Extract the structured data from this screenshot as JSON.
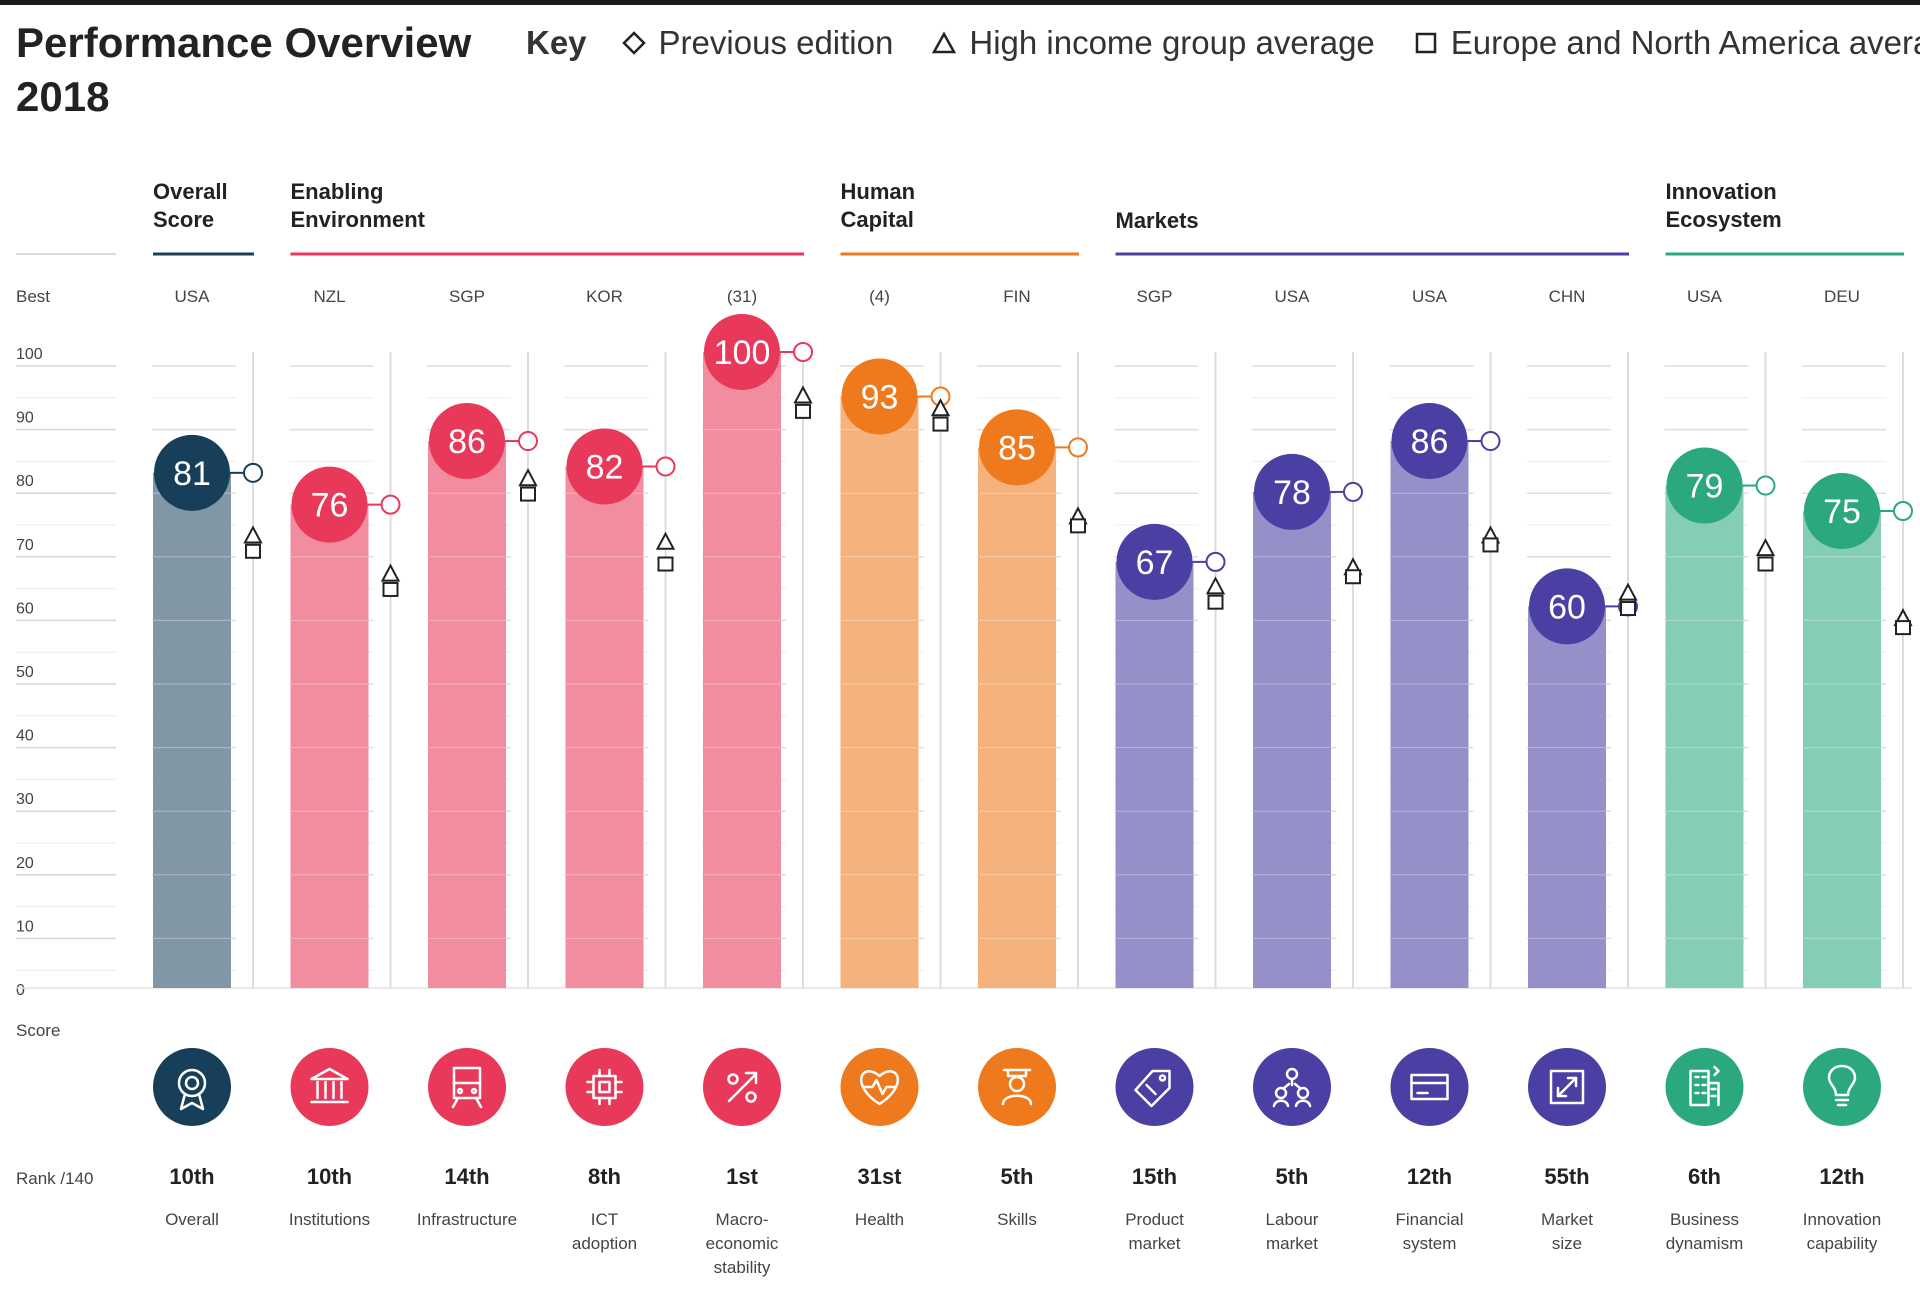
{
  "title_line1": "Performance Overview",
  "title_line2": "2018",
  "key": {
    "label": "Key",
    "items": [
      {
        "symbol": "diamond",
        "label": "Previous edition"
      },
      {
        "symbol": "triangle",
        "label": "High income group average"
      },
      {
        "symbol": "square",
        "label": "Europe and North America average"
      }
    ]
  },
  "colors": {
    "overall": "#173f5a",
    "enabling": "#e8395a",
    "human": "#ee7a1d",
    "markets": "#4a3fa2",
    "innovation": "#2ca87e"
  },
  "chart_data": {
    "type": "bar",
    "title": "Performance Overview 2018",
    "ylabel": "Score",
    "ylim": [
      0,
      100
    ],
    "yticks": [
      0,
      10,
      20,
      30,
      40,
      50,
      60,
      70,
      80,
      90,
      100
    ],
    "best_row_label": "Best",
    "score_row_label": "Score",
    "rank_row_label": "Rank /140",
    "groups": [
      {
        "name": "Overall Score",
        "lines": [
          "Overall",
          "Score"
        ],
        "color_key": "overall",
        "from": 0,
        "to": 0
      },
      {
        "name": "Enabling Environment",
        "lines": [
          "Enabling",
          "Environment"
        ],
        "color_key": "enabling",
        "from": 1,
        "to": 4
      },
      {
        "name": "Human Capital",
        "lines": [
          "Human",
          "Capital"
        ],
        "color_key": "human",
        "from": 5,
        "to": 6
      },
      {
        "name": "Markets",
        "lines": [
          "Markets"
        ],
        "color_key": "markets",
        "from": 7,
        "to": 10
      },
      {
        "name": "Innovation Ecosystem",
        "lines": [
          "Innovation",
          "Ecosystem"
        ],
        "color_key": "innovation",
        "from": 11,
        "to": 12
      }
    ],
    "pillars": [
      {
        "name": "Overall",
        "label_lines": [
          "Overall"
        ],
        "icon": "ribbon-award-icon",
        "best": "USA",
        "score": 81,
        "rank": "10th",
        "previous": 81,
        "high_income": 71,
        "europe_na": 70,
        "group": "overall"
      },
      {
        "name": "Institutions",
        "label_lines": [
          "Institutions"
        ],
        "icon": "institutions-building-icon",
        "best": "NZL",
        "score": 76,
        "rank": "10th",
        "previous": 76,
        "high_income": 65,
        "europe_na": 64,
        "group": "enabling"
      },
      {
        "name": "Infrastructure",
        "label_lines": [
          "Infrastructure"
        ],
        "icon": "train-icon",
        "best": "SGP",
        "score": 86,
        "rank": "14th",
        "previous": 86,
        "high_income": 80,
        "europe_na": 79,
        "group": "enabling"
      },
      {
        "name": "ICT adoption",
        "label_lines": [
          "ICT",
          "adoption"
        ],
        "icon": "microchip-icon",
        "best": "KOR",
        "score": 82,
        "rank": "8th",
        "previous": 82,
        "high_income": 70,
        "europe_na": 68,
        "group": "enabling"
      },
      {
        "name": "Macroeconomic stability",
        "label_lines": [
          "Macro-",
          "economic",
          "stability"
        ],
        "icon": "percent-icon",
        "best": "(31)",
        "score": 100,
        "rank": "1st",
        "previous": 100,
        "high_income": 93,
        "europe_na": 92,
        "group": "enabling"
      },
      {
        "name": "Health",
        "label_lines": [
          "Health"
        ],
        "icon": "heart-pulse-icon",
        "best": "(4)",
        "score": 93,
        "rank": "31st",
        "previous": 93,
        "high_income": 91,
        "europe_na": 90,
        "group": "human"
      },
      {
        "name": "Skills",
        "label_lines": [
          "Skills"
        ],
        "icon": "graduate-icon",
        "best": "FIN",
        "score": 85,
        "rank": "5th",
        "previous": 85,
        "high_income": 74,
        "europe_na": 74,
        "group": "human"
      },
      {
        "name": "Product market",
        "label_lines": [
          "Product",
          "market"
        ],
        "icon": "price-tag-icon",
        "best": "SGP",
        "score": 67,
        "rank": "15th",
        "previous": 67,
        "high_income": 63,
        "europe_na": 62,
        "group": "markets"
      },
      {
        "name": "Labour market",
        "label_lines": [
          "Labour",
          "market"
        ],
        "icon": "people-network-icon",
        "best": "USA",
        "score": 78,
        "rank": "5th",
        "previous": 78,
        "high_income": 66,
        "europe_na": 66,
        "group": "markets"
      },
      {
        "name": "Financial system",
        "label_lines": [
          "Financial",
          "system"
        ],
        "icon": "credit-card-icon",
        "best": "USA",
        "score": 86,
        "rank": "12th",
        "previous": 86,
        "high_income": 71,
        "europe_na": 71,
        "group": "markets"
      },
      {
        "name": "Market size",
        "label_lines": [
          "Market",
          "size"
        ],
        "icon": "expand-arrows-icon",
        "best": "CHN",
        "score": 60,
        "rank": "55th",
        "previous": 60,
        "high_income": 62,
        "europe_na": 61,
        "group": "markets"
      },
      {
        "name": "Business dynamism",
        "label_lines": [
          "Business",
          "dynamism"
        ],
        "icon": "office-building-icon",
        "best": "USA",
        "score": 79,
        "rank": "6th",
        "previous": 79,
        "high_income": 69,
        "europe_na": 68,
        "group": "innovation"
      },
      {
        "name": "Innovation capability",
        "label_lines": [
          "Innovation",
          "capability"
        ],
        "icon": "lightbulb-icon",
        "best": "DEU",
        "score": 75,
        "rank": "12th",
        "previous": 75,
        "high_income": 58,
        "europe_na": 58,
        "group": "innovation"
      }
    ]
  }
}
